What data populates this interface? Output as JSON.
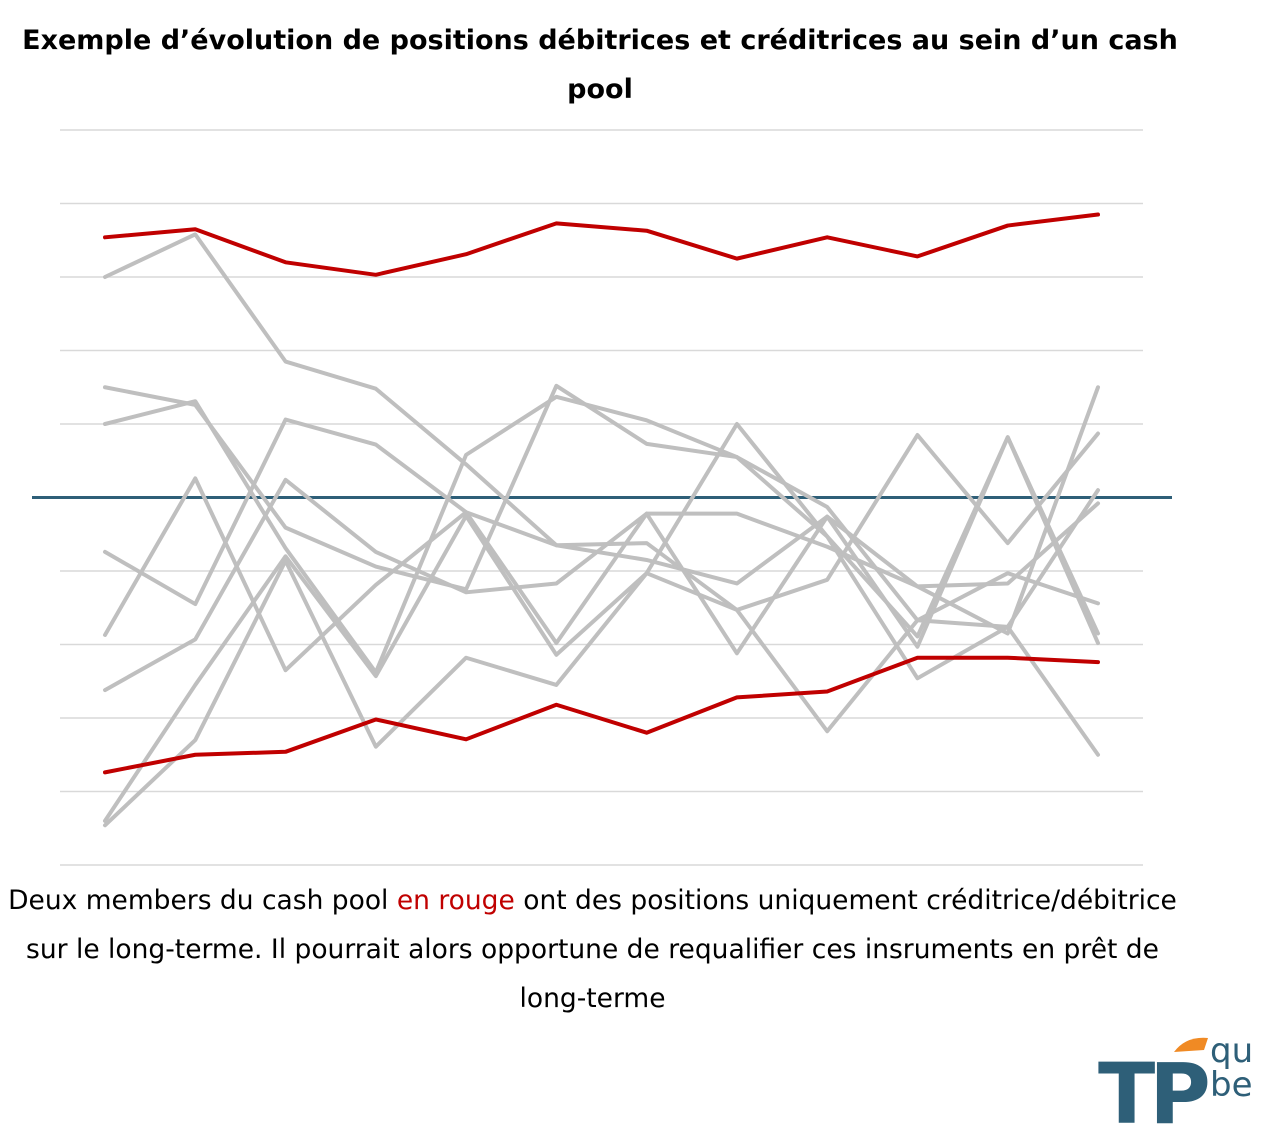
{
  "chart_data": {
    "type": "line",
    "title": "Exemple d’évolution de positions débitrices et créditrices au sein d’un cash pool",
    "xlabel": "",
    "ylabel": "",
    "x": [
      1,
      2,
      3,
      4,
      5,
      6,
      7,
      8,
      9,
      10,
      11,
      12
    ],
    "ylim": [
      -5,
      5
    ],
    "grid": true,
    "legend": "none",
    "zero_line_color": "#2e5f78",
    "highlight_color": "#c00000",
    "other_color": "#bfbfbf",
    "series": [
      {
        "highlight": false,
        "values": [
          3.0,
          3.58,
          1.85,
          1.48,
          0.45,
          -0.65,
          -0.85,
          -1.17,
          -0.26,
          -1.21,
          -1.17,
          -0.08
        ]
      },
      {
        "highlight": false,
        "values": [
          1.5,
          1.26,
          -0.41,
          -0.94,
          -1.25,
          1.52,
          0.73,
          0.55,
          -0.53,
          -1.89,
          0.82,
          -1.98
        ]
      },
      {
        "highlight": false,
        "values": [
          1.0,
          1.31,
          -0.69,
          -2.38,
          0.58,
          1.37,
          1.05,
          0.55,
          -0.13,
          -1.67,
          -1.03,
          -1.44
        ]
      },
      {
        "highlight": false,
        "values": [
          -0.74,
          -1.45,
          1.06,
          0.72,
          -0.2,
          -0.65,
          -0.62,
          -1.53,
          -1.12,
          0.85,
          -0.62,
          0.87
        ]
      },
      {
        "highlight": false,
        "values": [
          -1.87,
          0.26,
          -2.35,
          -1.19,
          -0.2,
          -1.98,
          -0.22,
          -0.22,
          -0.67,
          -1.21,
          -1.85,
          1.5
        ]
      },
      {
        "highlight": false,
        "values": [
          -2.62,
          -1.93,
          0.24,
          -0.74,
          -1.29,
          -1.17,
          -0.22,
          -2.12,
          -0.26,
          -2.03,
          0.82,
          -1.85
        ]
      },
      {
        "highlight": false,
        "values": [
          -4.4,
          -2.55,
          -0.8,
          -2.43,
          -0.25,
          -2.14,
          -1.03,
          1.0,
          -0.53,
          -2.46,
          -1.76,
          0.1
        ]
      },
      {
        "highlight": false,
        "values": [
          -4.46,
          -3.3,
          -0.86,
          -3.39,
          -2.18,
          -2.55,
          -1.03,
          -1.53,
          -3.18,
          -1.67,
          -1.76,
          -3.5
        ]
      },
      {
        "highlight": true,
        "values": [
          3.54,
          3.65,
          3.2,
          3.03,
          3.31,
          3.73,
          3.63,
          3.25,
          3.54,
          3.28,
          3.7,
          3.85
        ]
      },
      {
        "highlight": true,
        "values": [
          -3.74,
          -3.5,
          -3.46,
          -3.02,
          -3.29,
          -2.82,
          -3.2,
          -2.72,
          -2.64,
          -2.18,
          -2.18,
          -2.24
        ]
      }
    ]
  },
  "caption": {
    "part1": "Deux members du cash pool ",
    "highlight": "en rouge",
    "part2": " ont des positions uniquement créditrice/débitrice sur le long-terme. Il pourrait alors opportune de requalifier ces insruments en prêt de long-terme"
  },
  "logo": {
    "text_main": "TP",
    "text_top": "qu",
    "text_bottom": "be",
    "color": "#2e5f78",
    "accent": "#f08a24"
  }
}
